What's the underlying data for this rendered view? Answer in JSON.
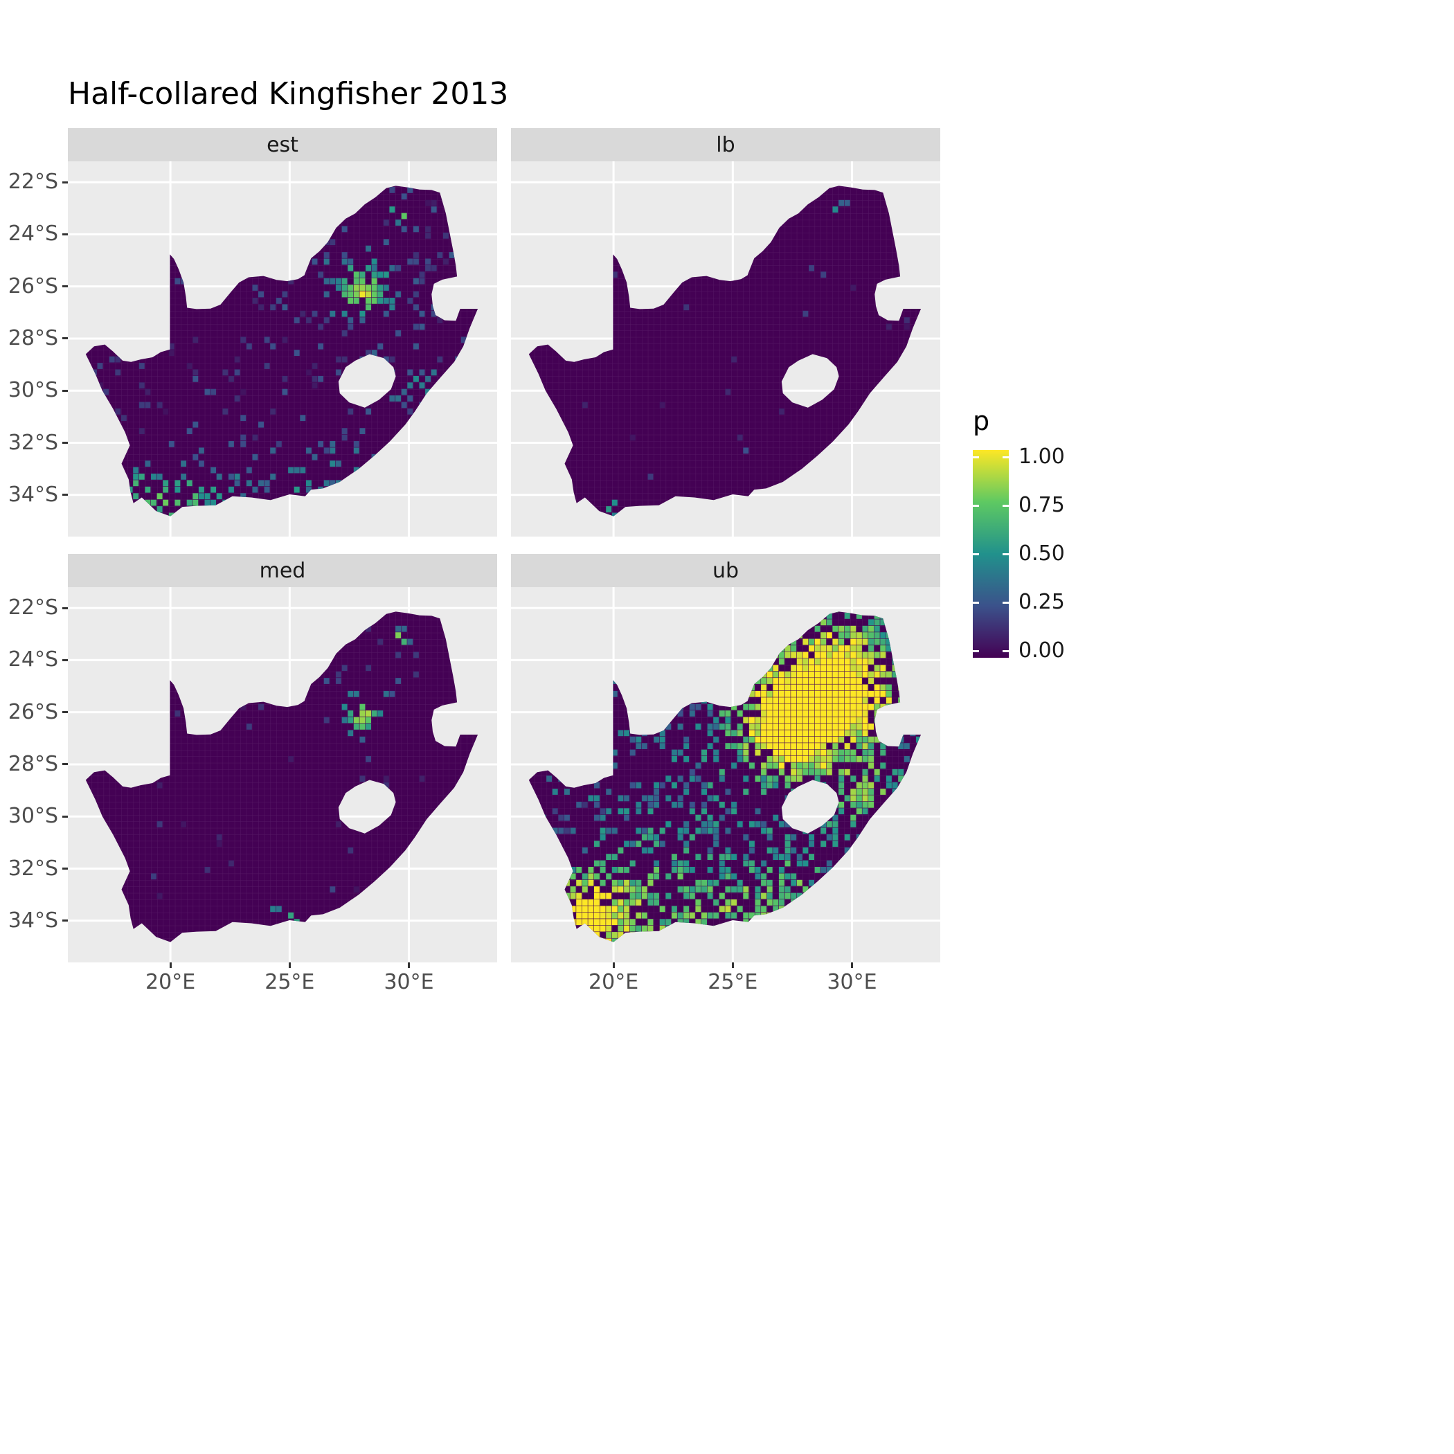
{
  "title": "Half-collared Kingfisher 2013",
  "chart_data": {
    "type": "heatmap",
    "subtype": "faceted_raster_probability_map",
    "region": "South Africa",
    "title": "Half-collared Kingfisher 2013",
    "variable": "p",
    "value_range": [
      0,
      1
    ],
    "lon_domain": [
      15.7,
      33.7
    ],
    "lat_domain": [
      -35.6,
      -21.2
    ],
    "x_ticks": [
      {
        "label": "20°E",
        "lon": 20
      },
      {
        "label": "25°E",
        "lon": 25
      },
      {
        "label": "30°E",
        "lon": 30
      }
    ],
    "y_ticks": [
      {
        "label": "22°S",
        "lat": -22
      },
      {
        "label": "24°S",
        "lat": -24
      },
      {
        "label": "26°S",
        "lat": -26
      },
      {
        "label": "28°S",
        "lat": -28
      },
      {
        "label": "30°S",
        "lat": -30
      },
      {
        "label": "32°S",
        "lat": -32
      },
      {
        "label": "34°S",
        "lat": -34
      }
    ],
    "legend": {
      "title": "p",
      "ticks": [
        {
          "label": "1.00",
          "value": 1.0
        },
        {
          "label": "0.75",
          "value": 0.75
        },
        {
          "label": "0.50",
          "value": 0.5
        },
        {
          "label": "0.25",
          "value": 0.25
        },
        {
          "label": "0.00",
          "value": 0.0
        }
      ]
    },
    "colormap": {
      "name": "viridis",
      "stops": [
        [
          0.0,
          "#440154"
        ],
        [
          0.25,
          "#3B528B"
        ],
        [
          0.5,
          "#21918C"
        ],
        [
          0.75,
          "#5EC962"
        ],
        [
          1.0,
          "#FDE725"
        ]
      ]
    },
    "colors": {
      "panel_bg": "#EBEBEB",
      "strip_bg": "#D9D9D9",
      "grid": "#FFFFFF",
      "axis_text": "#4D4D4D",
      "strip_text": "#1A1A1A",
      "base_fill": "#440154"
    },
    "facets": [
      {
        "id": "est",
        "label": "est",
        "description": "Estimated reporting probability: mostly near 0 (dark purple) with scattered low-moderate cells, a bright yellow-green hotspot around Gauteng (~28E,26S), speckles along the southern and eastern coasts.",
        "seed": 101,
        "base_density": 0.07,
        "base_value": 0.12,
        "value_spread": 0.22,
        "hotspots": [
          {
            "lon": 28.05,
            "lat": -26.15,
            "radius": 0.55,
            "density": 0.55,
            "value_boost": 0.55
          },
          {
            "lon": 28.1,
            "lat": -25.9,
            "radius": 1.6,
            "density": 0.2,
            "value_boost": 0.22
          },
          {
            "lon": 29.6,
            "lat": -23.15,
            "radius": 0.25,
            "density": 0.5,
            "value_boost": 0.7
          },
          {
            "lon": 19.4,
            "lat": -34.35,
            "radius": 1.0,
            "density": 0.3,
            "value_boost": 0.3
          },
          {
            "lon": 20.6,
            "lat": -34.3,
            "radius": 0.9,
            "density": 0.2,
            "value_boost": 0.25
          },
          {
            "lon": 22.6,
            "lat": -34.0,
            "radius": 1.2,
            "density": 0.18,
            "value_boost": 0.22
          },
          {
            "lon": 25.6,
            "lat": -33.8,
            "radius": 1.0,
            "density": 0.18,
            "value_boost": 0.25
          },
          {
            "lon": 27.6,
            "lat": -32.9,
            "radius": 0.9,
            "density": 0.15,
            "value_boost": 0.22
          },
          {
            "lon": 30.7,
            "lat": -29.9,
            "radius": 0.9,
            "density": 0.18,
            "value_boost": 0.25
          },
          {
            "lon": 18.4,
            "lat": -33.6,
            "radius": 0.7,
            "density": 0.18,
            "value_boost": 0.25
          }
        ]
      },
      {
        "id": "lb",
        "label": "lb",
        "description": "Lower bound: almost entirely 0 (dark purple) with only a handful of faint cells and one or two bright specks.",
        "seed": 202,
        "base_density": 0.007,
        "base_value": 0.1,
        "value_spread": 0.12,
        "hotspots": [
          {
            "lon": 28.2,
            "lat": -26.0,
            "radius": 0.7,
            "density": 0.08,
            "value_boost": 0.2
          },
          {
            "lon": 29.6,
            "lat": -23.15,
            "radius": 0.22,
            "density": 0.35,
            "value_boost": 0.75
          },
          {
            "lon": 20.0,
            "lat": -34.5,
            "radius": 0.25,
            "density": 0.3,
            "value_boost": 0.6
          },
          {
            "lon": 25.9,
            "lat": -32.2,
            "radius": 0.3,
            "density": 0.15,
            "value_boost": 0.3
          }
        ]
      },
      {
        "id": "med",
        "label": "med",
        "description": "Median: mostly 0 with sparse dots; small bright cluster near Gauteng, a yellow speck in Limpopo (~29.6E,23.2S) and a few colored cells on the south coast.",
        "seed": 303,
        "base_density": 0.014,
        "base_value": 0.1,
        "value_spread": 0.16,
        "hotspots": [
          {
            "lon": 28.05,
            "lat": -26.15,
            "radius": 0.5,
            "density": 0.35,
            "value_boost": 0.55
          },
          {
            "lon": 28.2,
            "lat": -25.6,
            "radius": 1.2,
            "density": 0.08,
            "value_boost": 0.2
          },
          {
            "lon": 29.6,
            "lat": -23.15,
            "radius": 0.25,
            "density": 0.45,
            "value_boost": 0.75
          },
          {
            "lon": 24.8,
            "lat": -34.2,
            "radius": 0.7,
            "density": 0.2,
            "value_boost": 0.45
          },
          {
            "lon": 20.0,
            "lat": -34.5,
            "radius": 0.4,
            "density": 0.15,
            "value_boost": 0.35
          },
          {
            "lon": 26.4,
            "lat": -33.7,
            "radius": 0.5,
            "density": 0.1,
            "value_boost": 0.3
          }
        ]
      },
      {
        "id": "ub",
        "label": "ub",
        "description": "Upper bound: dense teal/green/yellow speckling across the country; large bright yellow-green cluster over Gauteng/NW (~27-29E, 25-27S), strong clusters along the Western/Eastern Cape coast and KwaZulu-Natal coast.",
        "seed": 404,
        "base_density": 0.2,
        "base_value": 0.22,
        "value_spread": 0.34,
        "hotspots": [
          {
            "lon": 28.1,
            "lat": -26.0,
            "radius": 1.6,
            "density": 0.55,
            "value_boost": 0.55
          },
          {
            "lon": 28.3,
            "lat": -25.3,
            "radius": 2.6,
            "density": 0.3,
            "value_boost": 0.3
          },
          {
            "lon": 27.3,
            "lat": -26.7,
            "radius": 1.0,
            "density": 0.3,
            "value_boost": 0.4
          },
          {
            "lon": 29.6,
            "lat": -23.3,
            "radius": 1.4,
            "density": 0.25,
            "value_boost": 0.3
          },
          {
            "lon": 31.0,
            "lat": -25.3,
            "radius": 1.2,
            "density": 0.25,
            "value_boost": 0.3
          },
          {
            "lon": 30.8,
            "lat": -29.6,
            "radius": 1.2,
            "density": 0.3,
            "value_boost": 0.35
          },
          {
            "lon": 19.2,
            "lat": -34.3,
            "radius": 1.3,
            "density": 0.45,
            "value_boost": 0.5
          },
          {
            "lon": 18.5,
            "lat": -33.5,
            "radius": 0.9,
            "density": 0.35,
            "value_boost": 0.45
          },
          {
            "lon": 22.8,
            "lat": -34.0,
            "radius": 1.6,
            "density": 0.28,
            "value_boost": 0.32
          },
          {
            "lon": 25.6,
            "lat": -33.8,
            "radius": 1.2,
            "density": 0.28,
            "value_boost": 0.32
          },
          {
            "lon": 27.8,
            "lat": -32.9,
            "radius": 1.1,
            "density": 0.22,
            "value_boost": 0.3
          },
          {
            "lon": 20.5,
            "lat": -32.0,
            "radius": 1.5,
            "density": 0.12,
            "value_boost": 0.18
          },
          {
            "lon": 24.5,
            "lat": -29.5,
            "radius": 3.0,
            "density": 0.06,
            "value_boost": 0.1
          }
        ]
      }
    ],
    "map": {
      "outer": [
        [
          16.45,
          -28.6
        ],
        [
          16.8,
          -28.3
        ],
        [
          17.25,
          -28.23
        ],
        [
          17.6,
          -28.5
        ],
        [
          18.0,
          -28.85
        ],
        [
          18.35,
          -28.9
        ],
        [
          18.75,
          -28.8
        ],
        [
          19.25,
          -28.72
        ],
        [
          19.6,
          -28.52
        ],
        [
          19.98,
          -28.42
        ],
        [
          19.98,
          -24.77
        ],
        [
          20.15,
          -24.95
        ],
        [
          20.35,
          -25.35
        ],
        [
          20.55,
          -25.85
        ],
        [
          20.65,
          -26.4
        ],
        [
          20.7,
          -26.82
        ],
        [
          21.1,
          -26.87
        ],
        [
          21.68,
          -26.85
        ],
        [
          22.1,
          -26.7
        ],
        [
          22.55,
          -26.2
        ],
        [
          22.88,
          -25.85
        ],
        [
          23.28,
          -25.65
        ],
        [
          23.9,
          -25.6
        ],
        [
          24.45,
          -25.75
        ],
        [
          24.9,
          -25.8
        ],
        [
          25.35,
          -25.72
        ],
        [
          25.62,
          -25.57
        ],
        [
          25.68,
          -25.42
        ],
        [
          25.9,
          -24.92
        ],
        [
          26.25,
          -24.65
        ],
        [
          26.6,
          -24.3
        ],
        [
          26.95,
          -23.75
        ],
        [
          27.35,
          -23.4
        ],
        [
          27.75,
          -23.2
        ],
        [
          28.15,
          -22.85
        ],
        [
          28.6,
          -22.58
        ],
        [
          29.05,
          -22.23
        ],
        [
          29.45,
          -22.14
        ],
        [
          29.95,
          -22.2
        ],
        [
          30.45,
          -22.28
        ],
        [
          30.95,
          -22.3
        ],
        [
          31.3,
          -22.4
        ],
        [
          31.55,
          -23.2
        ],
        [
          31.7,
          -23.9
        ],
        [
          31.85,
          -24.6
        ],
        [
          31.97,
          -25.2
        ],
        [
          32.02,
          -25.62
        ],
        [
          31.4,
          -25.74
        ],
        [
          31.05,
          -25.9
        ],
        [
          30.95,
          -26.3
        ],
        [
          31.0,
          -26.75
        ],
        [
          31.12,
          -27.1
        ],
        [
          31.5,
          -27.3
        ],
        [
          31.97,
          -27.32
        ],
        [
          32.15,
          -26.86
        ],
        [
          32.89,
          -26.86
        ],
        [
          32.55,
          -27.6
        ],
        [
          32.28,
          -28.3
        ],
        [
          31.9,
          -28.9
        ],
        [
          31.32,
          -29.5
        ],
        [
          30.75,
          -30.1
        ],
        [
          30.25,
          -30.8
        ],
        [
          29.85,
          -31.3
        ],
        [
          29.2,
          -31.95
        ],
        [
          28.55,
          -32.5
        ],
        [
          27.9,
          -33.0
        ],
        [
          27.1,
          -33.5
        ],
        [
          26.4,
          -33.75
        ],
        [
          25.9,
          -33.8
        ],
        [
          25.65,
          -34.05
        ],
        [
          25.0,
          -33.98
        ],
        [
          24.2,
          -34.2
        ],
        [
          23.4,
          -34.1
        ],
        [
          22.6,
          -34.05
        ],
        [
          21.9,
          -34.4
        ],
        [
          21.1,
          -34.42
        ],
        [
          20.5,
          -34.46
        ],
        [
          20.0,
          -34.82
        ],
        [
          19.4,
          -34.62
        ],
        [
          19.1,
          -34.36
        ],
        [
          18.8,
          -34.1
        ],
        [
          18.45,
          -34.32
        ],
        [
          18.33,
          -33.9
        ],
        [
          18.25,
          -33.4
        ],
        [
          17.95,
          -32.8
        ],
        [
          18.3,
          -32.1
        ],
        [
          18.1,
          -31.6
        ],
        [
          17.6,
          -30.7
        ],
        [
          17.15,
          -30.0
        ],
        [
          16.85,
          -29.35
        ]
      ],
      "lesotho": [
        [
          27.05,
          -29.65
        ],
        [
          27.35,
          -29.1
        ],
        [
          27.75,
          -28.85
        ],
        [
          28.35,
          -28.6
        ],
        [
          28.95,
          -28.75
        ],
        [
          29.35,
          -29.1
        ],
        [
          29.45,
          -29.45
        ],
        [
          29.25,
          -29.95
        ],
        [
          28.75,
          -30.35
        ],
        [
          28.15,
          -30.65
        ],
        [
          27.5,
          -30.45
        ],
        [
          27.1,
          -30.1
        ]
      ]
    }
  }
}
